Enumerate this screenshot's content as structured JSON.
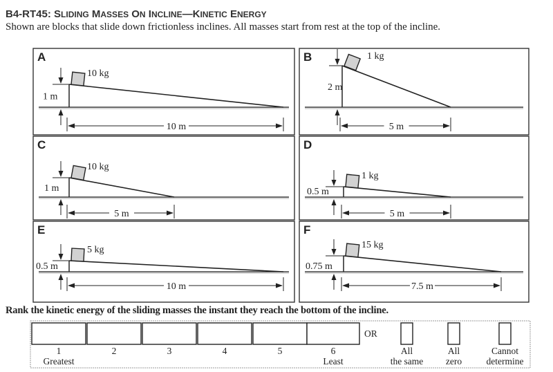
{
  "header": {
    "code": "B4-RT45:",
    "title": "Sliding Masses on Incline—Kinetic Energy"
  },
  "intro": "Shown are blocks that slide down frictionless inclines. All masses start from rest at the top of the incline.",
  "panels": [
    {
      "letter": "A",
      "mass": "10 kg",
      "height": "1 m",
      "length": "10 m"
    },
    {
      "letter": "B",
      "mass": "1 kg",
      "height": "2 m",
      "length": "5 m"
    },
    {
      "letter": "C",
      "mass": "10 kg",
      "height": "1 m",
      "length": "5 m"
    },
    {
      "letter": "D",
      "mass": "1 kg",
      "height": "0.5 m",
      "length": "5 m"
    },
    {
      "letter": "E",
      "mass": "5 kg",
      "height": "0.5 m",
      "length": "10 m"
    },
    {
      "letter": "F",
      "mass": "15 kg",
      "height": "0.75 m",
      "length": "7.5 m"
    }
  ],
  "question": "Rank the kinetic energy of the sliding masses the instant they reach the bottom of the incline.",
  "ranking": {
    "ranks": [
      {
        "num": "1",
        "sub": "Greatest"
      },
      {
        "num": "2",
        "sub": ""
      },
      {
        "num": "3",
        "sub": ""
      },
      {
        "num": "4",
        "sub": ""
      },
      {
        "num": "5",
        "sub": ""
      },
      {
        "num": "6",
        "sub": "Least"
      }
    ],
    "or_label": "OR",
    "options": [
      {
        "line1": "All",
        "line2": "the same"
      },
      {
        "line1": "All",
        "line2": "zero"
      },
      {
        "line1": "Cannot",
        "line2": "determine"
      }
    ]
  }
}
